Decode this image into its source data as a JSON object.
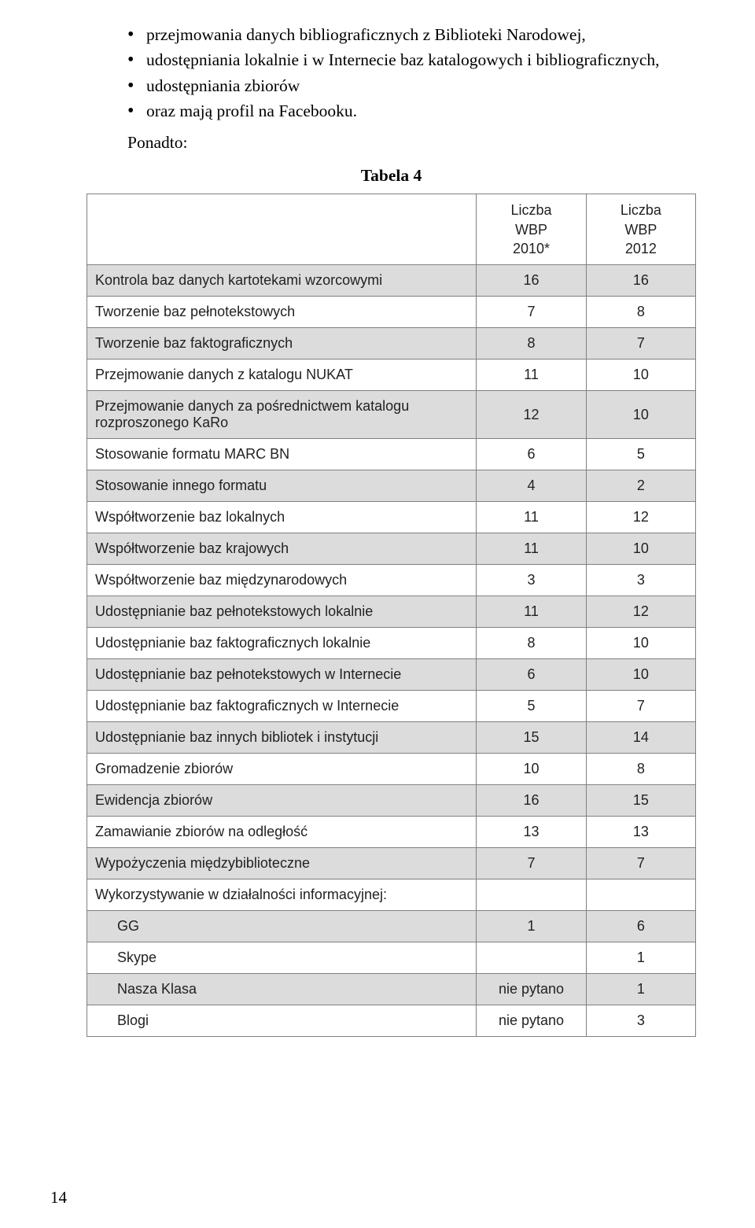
{
  "bullets": [
    "przejmowania danych bibliograficznych z Biblioteki Narodowej,",
    "udostępniania lokalnie i w Internecie baz katalogowych i bibliograficznych,",
    "udostępniania zbiorów",
    "oraz mają profil na Facebooku."
  ],
  "afterBullets": "Ponadto:",
  "tableCaption": "Tabela 4",
  "headers": {
    "col1": "",
    "col2": "Liczba\nWBP\n2010*",
    "col3": "Liczba\nWBP\n2012"
  },
  "rows": [
    {
      "label": "Kontrola baz danych kartotekami wzorcowymi",
      "v1": "16",
      "v2": "16",
      "shaded": true,
      "indent": false
    },
    {
      "label": "Tworzenie baz pełnotekstowych",
      "v1": "7",
      "v2": "8",
      "shaded": false,
      "indent": false
    },
    {
      "label": "Tworzenie baz faktograficznych",
      "v1": "8",
      "v2": "7",
      "shaded": true,
      "indent": false
    },
    {
      "label": "Przejmowanie danych z katalogu NUKAT",
      "v1": "11",
      "v2": "10",
      "shaded": false,
      "indent": false
    },
    {
      "label": "Przejmowanie danych za pośrednictwem katalogu rozproszonego KaRo",
      "v1": "12",
      "v2": "10",
      "shaded": true,
      "indent": false
    },
    {
      "label": "Stosowanie formatu MARC BN",
      "v1": "6",
      "v2": "5",
      "shaded": false,
      "indent": false
    },
    {
      "label": "Stosowanie innego formatu",
      "v1": "4",
      "v2": "2",
      "shaded": true,
      "indent": false
    },
    {
      "label": "Współtworzenie baz lokalnych",
      "v1": "11",
      "v2": "12",
      "shaded": false,
      "indent": false
    },
    {
      "label": "Współtworzenie baz krajowych",
      "v1": "11",
      "v2": "10",
      "shaded": true,
      "indent": false
    },
    {
      "label": "Współtworzenie baz międzynarodowych",
      "v1": "3",
      "v2": "3",
      "shaded": false,
      "indent": false
    },
    {
      "label": "Udostępnianie baz pełnotekstowych lokalnie",
      "v1": "11",
      "v2": "12",
      "shaded": true,
      "indent": false
    },
    {
      "label": "Udostępnianie baz faktograficznych lokalnie",
      "v1": "8",
      "v2": "10",
      "shaded": false,
      "indent": false
    },
    {
      "label": "Udostępnianie baz pełnotekstowych w Internecie",
      "v1": "6",
      "v2": "10",
      "shaded": true,
      "indent": false
    },
    {
      "label": "Udostępnianie baz faktograficznych w Internecie",
      "v1": "5",
      "v2": "7",
      "shaded": false,
      "indent": false
    },
    {
      "label": "Udostępnianie baz innych bibliotek i instytucji",
      "v1": "15",
      "v2": "14",
      "shaded": true,
      "indent": false
    },
    {
      "label": "Gromadzenie zbiorów",
      "v1": "10",
      "v2": "8",
      "shaded": false,
      "indent": false
    },
    {
      "label": "Ewidencja zbiorów",
      "v1": "16",
      "v2": "15",
      "shaded": true,
      "indent": false
    },
    {
      "label": "Zamawianie zbiorów na odległość",
      "v1": "13",
      "v2": "13",
      "shaded": false,
      "indent": false
    },
    {
      "label": "Wypożyczenia międzybiblioteczne",
      "v1": "7",
      "v2": "7",
      "shaded": true,
      "indent": false
    },
    {
      "label": "Wykorzystywanie w działalności informacyjnej:",
      "v1": "",
      "v2": "",
      "shaded": false,
      "indent": false
    },
    {
      "label": "GG",
      "v1": "1",
      "v2": "6",
      "shaded": true,
      "indent": true
    },
    {
      "label": "Skype",
      "v1": "",
      "v2": "1",
      "shaded": false,
      "indent": true
    },
    {
      "label": "Nasza Klasa",
      "v1": "nie pytano",
      "v2": "1",
      "shaded": true,
      "indent": true
    },
    {
      "label": "Blogi",
      "v1": "nie pytano",
      "v2": "3",
      "shaded": false,
      "indent": true
    }
  ],
  "pageNumber": "14"
}
